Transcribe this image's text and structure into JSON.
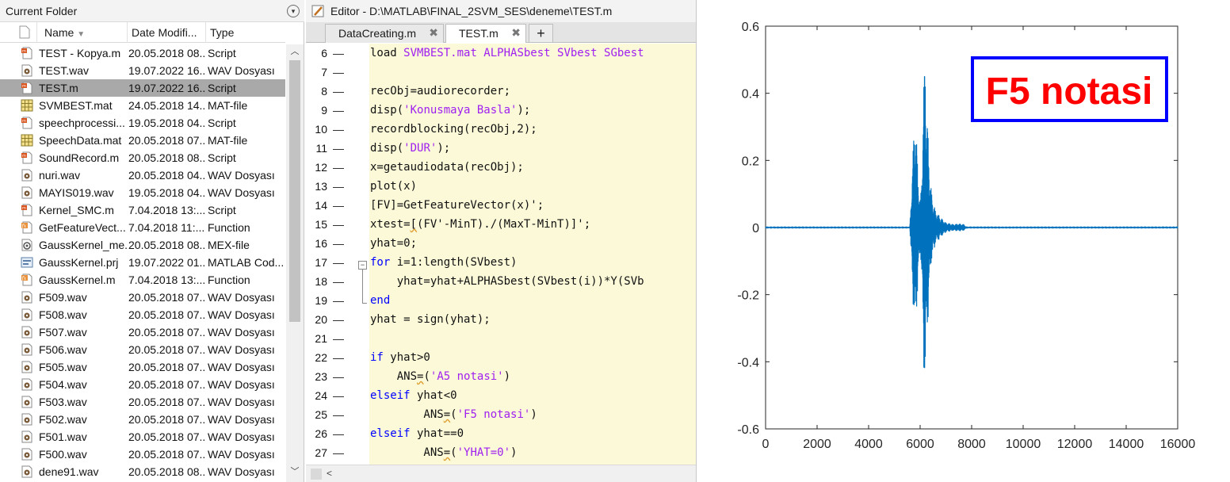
{
  "current_folder": {
    "title": "Current Folder",
    "columns": {
      "name": "Name",
      "date": "Date Modifi...",
      "type": "Type"
    },
    "selected_index": 2,
    "files": [
      {
        "name": "TEST - Kopya.m",
        "date": "20.05.2018 08...",
        "type": "Script",
        "icon": "script-icon"
      },
      {
        "name": "TEST.wav",
        "date": "19.07.2022 16...",
        "type": "WAV Dosyası",
        "icon": "audio-icon"
      },
      {
        "name": "TEST.m",
        "date": "19.07.2022 16...",
        "type": "Script",
        "icon": "script-icon"
      },
      {
        "name": "SVMBEST.mat",
        "date": "24.05.2018 14...",
        "type": "MAT-file",
        "icon": "mat-icon"
      },
      {
        "name": "speechprocessi...",
        "date": "19.05.2018 04...",
        "type": "Script",
        "icon": "script-icon"
      },
      {
        "name": "SpeechData.mat",
        "date": "20.05.2018 07...",
        "type": "MAT-file",
        "icon": "mat-icon"
      },
      {
        "name": "SoundRecord.m",
        "date": "20.05.2018 08...",
        "type": "Script",
        "icon": "script-icon"
      },
      {
        "name": "nuri.wav",
        "date": "20.05.2018 04...",
        "type": "WAV Dosyası",
        "icon": "audio-icon"
      },
      {
        "name": "MAYIS019.wav",
        "date": "19.05.2018 04...",
        "type": "WAV Dosyası",
        "icon": "audio-icon"
      },
      {
        "name": "Kernel_SMC.m",
        "date": "7.04.2018 13:...",
        "type": "Script",
        "icon": "script-icon"
      },
      {
        "name": "GetFeatureVect...",
        "date": "7.04.2018 11:...",
        "type": "Function",
        "icon": "function-icon"
      },
      {
        "name": "GaussKernel_me...",
        "date": "20.05.2018 08...",
        "type": "MEX-file",
        "icon": "mex-icon"
      },
      {
        "name": "GaussKernel.prj",
        "date": "19.07.2022 01...",
        "type": "MATLAB Cod...",
        "icon": "project-icon"
      },
      {
        "name": "GaussKernel.m",
        "date": "7.04.2018 13:...",
        "type": "Function",
        "icon": "function-icon"
      },
      {
        "name": "F509.wav",
        "date": "20.05.2018 07...",
        "type": "WAV Dosyası",
        "icon": "audio-icon"
      },
      {
        "name": "F508.wav",
        "date": "20.05.2018 07...",
        "type": "WAV Dosyası",
        "icon": "audio-icon"
      },
      {
        "name": "F507.wav",
        "date": "20.05.2018 07...",
        "type": "WAV Dosyası",
        "icon": "audio-icon"
      },
      {
        "name": "F506.wav",
        "date": "20.05.2018 07...",
        "type": "WAV Dosyası",
        "icon": "audio-icon"
      },
      {
        "name": "F505.wav",
        "date": "20.05.2018 07...",
        "type": "WAV Dosyası",
        "icon": "audio-icon"
      },
      {
        "name": "F504.wav",
        "date": "20.05.2018 07...",
        "type": "WAV Dosyası",
        "icon": "audio-icon"
      },
      {
        "name": "F503.wav",
        "date": "20.05.2018 07...",
        "type": "WAV Dosyası",
        "icon": "audio-icon"
      },
      {
        "name": "F502.wav",
        "date": "20.05.2018 07...",
        "type": "WAV Dosyası",
        "icon": "audio-icon"
      },
      {
        "name": "F501.wav",
        "date": "20.05.2018 07...",
        "type": "WAV Dosyası",
        "icon": "audio-icon"
      },
      {
        "name": "F500.wav",
        "date": "20.05.2018 07...",
        "type": "WAV Dosyası",
        "icon": "audio-icon"
      },
      {
        "name": "dene91.wav",
        "date": "20.05.2018 08...",
        "type": "WAV Dosyası",
        "icon": "audio-icon"
      }
    ]
  },
  "editor": {
    "title": "Editor - D:\\MATLAB\\FINAL_2SVM_SES\\deneme\\TEST.m",
    "tabs": [
      {
        "label": "DataCreating.m",
        "close": "✖"
      },
      {
        "label": "TEST.m",
        "close": "✖"
      }
    ],
    "add_tab": "+",
    "lines": [
      {
        "n": "6",
        "tokens": [
          [
            "t",
            "load "
          ],
          [
            "s",
            "SVMBEST.mat ALPHASbest SVbest SGbest"
          ]
        ]
      },
      {
        "n": "7",
        "tokens": []
      },
      {
        "n": "8",
        "tokens": [
          [
            "t",
            "recObj=audiorecorder;"
          ]
        ]
      },
      {
        "n": "9",
        "tokens": [
          [
            "t",
            "disp("
          ],
          [
            "s",
            "'Konusmaya Basla'"
          ],
          [
            "t",
            ");"
          ]
        ]
      },
      {
        "n": "10",
        "tokens": [
          [
            "t",
            "recordblocking(recObj,2);"
          ]
        ]
      },
      {
        "n": "11",
        "tokens": [
          [
            "t",
            "disp("
          ],
          [
            "s",
            "'DUR'"
          ],
          [
            "t",
            ");"
          ]
        ]
      },
      {
        "n": "12",
        "tokens": [
          [
            "t",
            "x=getaudiodata(recObj);"
          ]
        ]
      },
      {
        "n": "13",
        "tokens": [
          [
            "t",
            "plot(x)"
          ]
        ]
      },
      {
        "n": "14",
        "tokens": [
          [
            "t",
            "[FV]=GetFeatureVector(x)';"
          ]
        ]
      },
      {
        "n": "15",
        "tokens": [
          [
            "t",
            "xtest="
          ],
          [
            "w",
            "["
          ],
          [
            "t",
            "(FV'-MinT)./(MaxT-MinT)]';"
          ]
        ]
      },
      {
        "n": "16",
        "tokens": [
          [
            "t",
            "yhat=0;"
          ]
        ]
      },
      {
        "n": "17",
        "tokens": [
          [
            "k",
            "for"
          ],
          [
            "t",
            " i=1:length(SVbest)"
          ]
        ]
      },
      {
        "n": "18",
        "tokens": [
          [
            "t",
            "    yhat=yhat+ALPHASbest(SVbest(i))*Y(SVb"
          ]
        ]
      },
      {
        "n": "19",
        "tokens": [
          [
            "k",
            "end"
          ]
        ]
      },
      {
        "n": "20",
        "tokens": [
          [
            "t",
            "yhat = sign(yhat);"
          ]
        ]
      },
      {
        "n": "21",
        "tokens": []
      },
      {
        "n": "22",
        "tokens": [
          [
            "k",
            "if"
          ],
          [
            "t",
            " yhat>0"
          ]
        ]
      },
      {
        "n": "23",
        "tokens": [
          [
            "t",
            "    ANS"
          ],
          [
            "w",
            "="
          ],
          [
            "t",
            "("
          ],
          [
            "s",
            "'A5 notasi'"
          ],
          [
            "t",
            ")"
          ]
        ]
      },
      {
        "n": "24",
        "tokens": [
          [
            "k",
            "elseif"
          ],
          [
            "t",
            " yhat<0"
          ]
        ]
      },
      {
        "n": "25",
        "tokens": [
          [
            "t",
            "        ANS"
          ],
          [
            "w",
            "="
          ],
          [
            "t",
            "("
          ],
          [
            "s",
            "'F5 notasi'"
          ],
          [
            "t",
            ")"
          ]
        ]
      },
      {
        "n": "26",
        "tokens": [
          [
            "k",
            "elseif"
          ],
          [
            "t",
            " yhat==0"
          ]
        ]
      },
      {
        "n": "27",
        "tokens": [
          [
            "t",
            "        ANS"
          ],
          [
            "w",
            "="
          ],
          [
            "t",
            "("
          ],
          [
            "s",
            "'YHAT=0'"
          ],
          [
            "t",
            ")"
          ]
        ]
      }
    ]
  },
  "figure": {
    "annotation": "F5 notasi",
    "annotation_color": "#ff0000",
    "annotation_border": "#0000ff",
    "line_color": "#0072bd",
    "chart_data": {
      "type": "line",
      "title": "",
      "xlabel": "",
      "ylabel": "",
      "xlim": [
        0,
        16000
      ],
      "ylim": [
        -0.6,
        0.6
      ],
      "xticks": [
        0,
        2000,
        4000,
        6000,
        8000,
        10000,
        12000,
        14000,
        16000
      ],
      "xtick_labels": [
        "0",
        "2000",
        "4000",
        "6000",
        "8000",
        "10000",
        "12000",
        "14000",
        "16000"
      ],
      "yticks": [
        0.6,
        0.4,
        0.2,
        0,
        -0.2,
        -0.4,
        -0.6
      ],
      "ytick_labels": [
        "0.6",
        "0.4",
        "0.2",
        "0",
        "-0.2",
        "-0.4",
        "-0.6"
      ],
      "grid": false,
      "series": [
        {
          "envelope": [
            [
              0,
              0.003
            ],
            [
              5600,
              0.003
            ],
            [
              5650,
              0.08
            ],
            [
              5700,
              0.2
            ],
            [
              5760,
              0.28
            ],
            [
              5820,
              0.37
            ],
            [
              5870,
              0.25
            ],
            [
              5920,
              0.15
            ],
            [
              5960,
              0.12
            ],
            [
              6000,
              0.08
            ],
            [
              6050,
              0.12
            ],
            [
              6100,
              0.3
            ],
            [
              6150,
              0.45
            ],
            [
              6200,
              0.54
            ],
            [
              6250,
              0.35
            ],
            [
              6300,
              0.3
            ],
            [
              6350,
              0.2
            ],
            [
              6400,
              0.14
            ],
            [
              6450,
              0.1
            ],
            [
              6500,
              0.08
            ],
            [
              6600,
              0.05
            ],
            [
              6800,
              0.03
            ],
            [
              7000,
              0.015
            ],
            [
              7300,
              0.01
            ],
            [
              7500,
              0.012
            ],
            [
              7700,
              0.01
            ],
            [
              7800,
              0.003
            ],
            [
              16000,
              0.003
            ]
          ]
        }
      ]
    }
  }
}
